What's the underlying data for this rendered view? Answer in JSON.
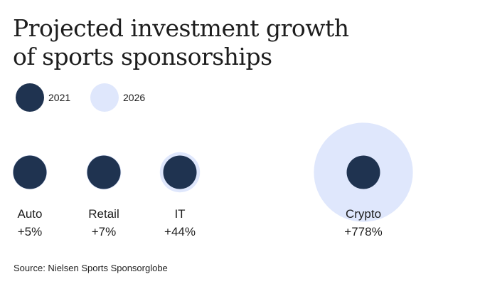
{
  "chart_data": {
    "type": "bubble",
    "title": "Projected investment growth of sports sponsorships",
    "title_lines": [
      "Projected investment growth",
      "of sports sponsorships"
    ],
    "legend": [
      {
        "label": "2021",
        "color": "#1f3350"
      },
      {
        "label": "2026",
        "color": "#dfe7fc"
      }
    ],
    "categories": [
      "Auto",
      "Retail",
      "IT",
      "Crypto"
    ],
    "growth_labels": [
      "+5%",
      "+7%",
      "+44%",
      "+778%"
    ],
    "growth_percent": [
      5,
      7,
      44,
      778
    ],
    "series": [
      {
        "name": "2021",
        "values": [
          1,
          1,
          1,
          1
        ]
      },
      {
        "name": "2026",
        "values": [
          1.05,
          1.07,
          1.44,
          8.78
        ]
      }
    ]
  },
  "source": "Source: Nielsen Sports Sponsorglobe"
}
